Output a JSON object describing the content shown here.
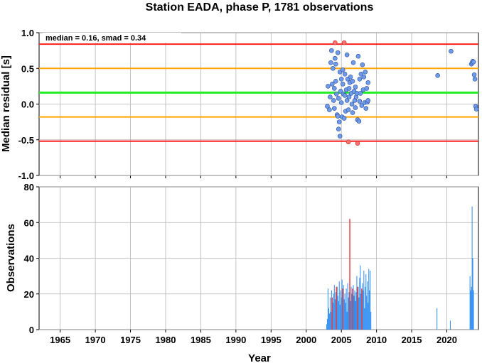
{
  "chart_data": [
    {
      "type": "scatter",
      "title": "Station EADA, phase P, 1781 observations",
      "annotation": "median = 0.16, smad = 0.34",
      "xlabel": "",
      "ylabel": "Median residual [s]",
      "xlim": [
        1962,
        2024.5
      ],
      "ylim": [
        -1.0,
        1.0
      ],
      "yticks": [
        "-1.0",
        "-0.5",
        "0.0",
        "0.5",
        "1.0"
      ],
      "grid": true,
      "reference_lines": [
        {
          "value": 0.84,
          "color": "#ff2020"
        },
        {
          "value": 0.5,
          "color": "#ffa500"
        },
        {
          "value": 0.16,
          "color": "#22ee22"
        },
        {
          "value": -0.18,
          "color": "#ffa500"
        },
        {
          "value": -0.52,
          "color": "#ff2020"
        }
      ],
      "point_color": "#6f9be8",
      "outlier_color": "#ff7070",
      "points": [
        [
          2003.0,
          -0.03
        ],
        [
          2003.1,
          0.25
        ],
        [
          2003.3,
          -0.08
        ],
        [
          2003.4,
          0.1
        ],
        [
          2003.5,
          0.58
        ],
        [
          2003.6,
          0.75
        ],
        [
          2003.7,
          0.28
        ],
        [
          2003.8,
          0.5
        ],
        [
          2003.9,
          0.05
        ],
        [
          2004.0,
          0.22
        ],
        [
          2004.0,
          -0.06
        ],
        [
          2004.1,
          0.64
        ],
        [
          2004.2,
          0.56
        ],
        [
          2004.2,
          0.32
        ],
        [
          2004.3,
          0.14
        ],
        [
          2004.4,
          -0.15
        ],
        [
          2004.5,
          0.72
        ],
        [
          2004.5,
          -0.17
        ],
        [
          2004.6,
          0.08
        ],
        [
          2004.6,
          -0.35
        ],
        [
          2004.7,
          -0.25
        ],
        [
          2004.8,
          0.45
        ],
        [
          2004.8,
          -0.45
        ],
        [
          2004.9,
          0.18
        ],
        [
          2005.0,
          0.35
        ],
        [
          2005.0,
          0.02
        ],
        [
          2005.1,
          -0.18
        ],
        [
          2005.2,
          0.48
        ],
        [
          2005.2,
          0.28
        ],
        [
          2005.3,
          0.14
        ],
        [
          2005.4,
          -0.2
        ],
        [
          2005.5,
          0.42
        ],
        [
          2005.5,
          0.12
        ],
        [
          2005.6,
          -0.1
        ],
        [
          2005.7,
          0.2
        ],
        [
          2005.8,
          0.69
        ],
        [
          2005.8,
          0.05
        ],
        [
          2005.9,
          0.35
        ],
        [
          2006.0,
          -0.08
        ],
        [
          2006.1,
          0.22
        ],
        [
          2006.1,
          0.1
        ],
        [
          2006.2,
          0.3
        ],
        [
          2006.3,
          0.38
        ],
        [
          2006.4,
          0.15
        ],
        [
          2006.5,
          0.0
        ],
        [
          2006.6,
          -0.12
        ],
        [
          2006.6,
          0.32
        ],
        [
          2006.7,
          0.58
        ],
        [
          2006.8,
          0.18
        ],
        [
          2006.9,
          0.05
        ],
        [
          2007.0,
          -0.05
        ],
        [
          2007.0,
          0.24
        ],
        [
          2007.1,
          0.1
        ],
        [
          2007.2,
          0.15
        ],
        [
          2007.3,
          -0.22
        ],
        [
          2007.4,
          0.67
        ],
        [
          2007.5,
          -0.24
        ],
        [
          2007.6,
          0.35
        ],
        [
          2007.6,
          0.04
        ],
        [
          2007.7,
          0.15
        ],
        [
          2007.8,
          0.42
        ],
        [
          2007.9,
          -0.02
        ],
        [
          2008.0,
          0.55
        ],
        [
          2008.1,
          0.2
        ],
        [
          2008.2,
          0.38
        ],
        [
          2008.3,
          0.02
        ],
        [
          2008.4,
          0.45
        ],
        [
          2008.5,
          -0.06
        ],
        [
          2008.6,
          0.22
        ],
        [
          2008.7,
          0.03
        ],
        [
          2008.8,
          0.3
        ],
        [
          2008.8,
          0.05
        ],
        [
          2018.7,
          0.4
        ],
        [
          2020.6,
          0.74
        ],
        [
          2023.5,
          0.56
        ],
        [
          2023.6,
          0.58
        ],
        [
          2023.7,
          0.6
        ],
        [
          2023.8,
          0.59
        ],
        [
          2023.9,
          0.41
        ],
        [
          2024.0,
          0.35
        ],
        [
          2024.1,
          -0.03
        ],
        [
          2024.2,
          -0.07
        ]
      ],
      "outliers": [
        [
          2004.1,
          0.86
        ],
        [
          2005.4,
          0.86
        ],
        [
          2006.0,
          -0.53
        ],
        [
          2007.3,
          -0.55
        ]
      ]
    },
    {
      "type": "bar",
      "xlabel": "Year",
      "ylabel": "Observations",
      "xlim": [
        1962,
        2024.5
      ],
      "ylim": [
        0,
        80
      ],
      "xticks": [
        "1965",
        "1970",
        "1975",
        "1980",
        "1985",
        "1990",
        "1995",
        "2000",
        "2005",
        "2010",
        "2015",
        "2020"
      ],
      "yticks": [
        "0",
        "20",
        "40",
        "60",
        "80"
      ],
      "grid": true,
      "bar_color": "#2b8cf0",
      "highlight_color": "#e84040",
      "bars": [
        [
          2002.9,
          3
        ],
        [
          2003.0,
          6
        ],
        [
          2003.1,
          23
        ],
        [
          2003.2,
          12
        ],
        [
          2003.3,
          9
        ],
        [
          2003.4,
          18
        ],
        [
          2003.5,
          10
        ],
        [
          2003.6,
          22
        ],
        [
          2003.7,
          7
        ],
        [
          2003.8,
          15
        ],
        [
          2003.9,
          20
        ],
        [
          2004.0,
          25
        ],
        [
          2004.1,
          17
        ],
        [
          2004.2,
          21
        ],
        [
          2004.3,
          13
        ],
        [
          2004.4,
          24
        ],
        [
          2004.5,
          19
        ],
        [
          2004.6,
          16
        ],
        [
          2004.7,
          27
        ],
        [
          2004.8,
          14
        ],
        [
          2004.9,
          22
        ],
        [
          2005.0,
          18
        ],
        [
          2005.1,
          28
        ],
        [
          2005.2,
          12
        ],
        [
          2005.3,
          25
        ],
        [
          2005.4,
          17
        ],
        [
          2005.5,
          20
        ],
        [
          2005.6,
          15
        ],
        [
          2005.7,
          23
        ],
        [
          2005.8,
          10
        ],
        [
          2005.9,
          26
        ],
        [
          2006.0,
          18
        ],
        [
          2006.1,
          21
        ],
        [
          2006.3,
          16
        ],
        [
          2006.4,
          24
        ],
        [
          2006.5,
          20
        ],
        [
          2006.6,
          13
        ],
        [
          2006.7,
          25
        ],
        [
          2006.8,
          19
        ],
        [
          2006.9,
          22
        ],
        [
          2007.0,
          16
        ],
        [
          2007.1,
          21
        ],
        [
          2007.2,
          30
        ],
        [
          2007.3,
          14
        ],
        [
          2007.4,
          24
        ],
        [
          2007.5,
          18
        ],
        [
          2007.6,
          29
        ],
        [
          2007.7,
          36
        ],
        [
          2007.8,
          20
        ],
        [
          2007.9,
          15
        ],
        [
          2008.0,
          26
        ],
        [
          2008.1,
          22
        ],
        [
          2008.2,
          33
        ],
        [
          2008.3,
          12
        ],
        [
          2008.4,
          24
        ],
        [
          2008.5,
          31
        ],
        [
          2008.6,
          19
        ],
        [
          2008.7,
          27
        ],
        [
          2008.8,
          15
        ],
        [
          2008.9,
          34
        ],
        [
          2009.0,
          22
        ],
        [
          2009.1,
          33
        ],
        [
          2009.2,
          10
        ],
        [
          2018.6,
          12
        ],
        [
          2020.5,
          5
        ],
        [
          2023.3,
          30
        ],
        [
          2023.4,
          22
        ],
        [
          2023.5,
          24
        ],
        [
          2023.6,
          69
        ],
        [
          2023.7,
          40
        ],
        [
          2023.8,
          22
        ]
      ],
      "highlight_bars": [
        [
          2003.7,
          18
        ],
        [
          2004.3,
          24
        ],
        [
          2005.2,
          23
        ],
        [
          2006.2,
          62
        ],
        [
          2006.6,
          23
        ],
        [
          2007.3,
          24
        ],
        [
          2007.9,
          23
        ]
      ]
    }
  ]
}
